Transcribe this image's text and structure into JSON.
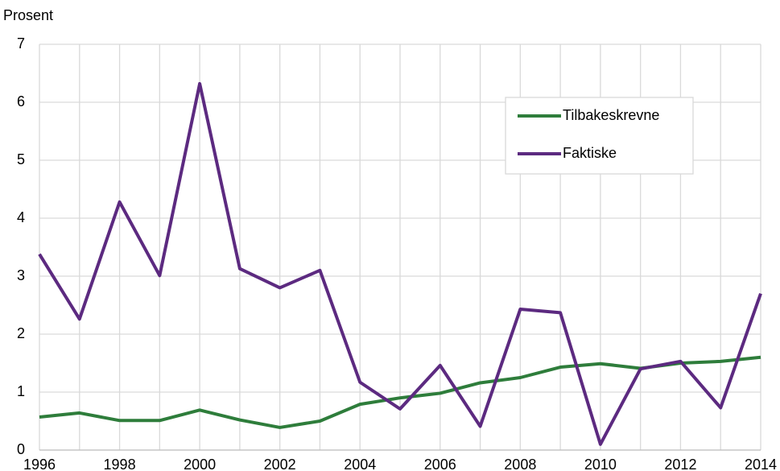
{
  "chart_data": {
    "type": "line",
    "y_label": "Prosent",
    "categories": [
      "1996",
      null,
      "1998",
      null,
      "2000",
      null,
      "2002",
      null,
      "2004",
      null,
      "2006",
      null,
      "2008",
      null,
      "2010",
      null,
      "2012",
      null,
      "2014"
    ],
    "series": [
      {
        "name": "Tilbakeskrevne",
        "color": "#2e7d3b",
        "values": [
          0.57,
          0.64,
          0.51,
          0.51,
          0.69,
          0.52,
          0.39,
          0.5,
          0.79,
          0.9,
          0.98,
          1.16,
          1.25,
          1.43,
          1.49,
          1.41,
          1.5,
          1.53,
          1.6
        ]
      },
      {
        "name": "Faktiske",
        "color": "#5c2a80",
        "values": [
          3.38,
          2.26,
          4.28,
          3.01,
          6.32,
          3.13,
          2.8,
          3.1,
          1.17,
          0.71,
          1.46,
          0.41,
          2.43,
          2.37,
          0.1,
          1.4,
          1.53,
          0.73,
          2.7
        ]
      }
    ],
    "ylim": [
      0,
      7
    ],
    "yticks": [
      0,
      1,
      2,
      3,
      4,
      5,
      6,
      7
    ],
    "grid": true,
    "legend": "upper right"
  }
}
